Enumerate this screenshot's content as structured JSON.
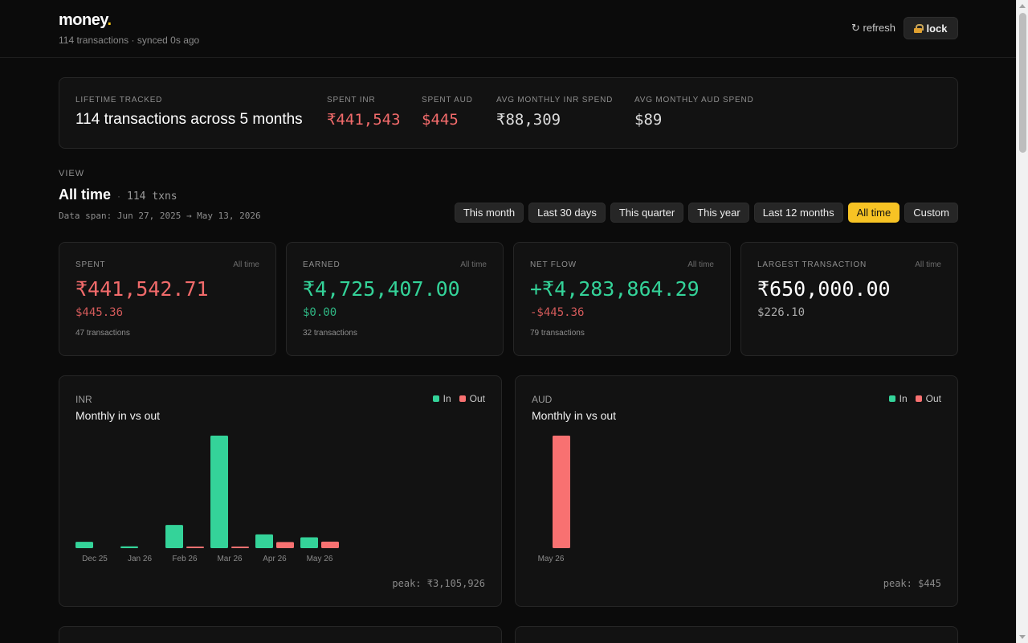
{
  "header": {
    "brand": "money",
    "brand_dot": ".",
    "subtitle": "114 transactions · synced 0s ago",
    "refresh_label": "↻ refresh",
    "lock_label": "lock"
  },
  "lifetime": {
    "items": [
      {
        "label": "LIFETIME TRACKED",
        "value": "114 transactions across 5 months"
      },
      {
        "label": "SPENT INR",
        "value": "₹441,543"
      },
      {
        "label": "SPENT AUD",
        "value": "$445"
      },
      {
        "label": "AVG MONTHLY INR SPEND",
        "value": "₹88,309"
      },
      {
        "label": "AVG MONTHLY AUD SPEND",
        "value": "$89"
      }
    ]
  },
  "view": {
    "label": "VIEW",
    "title": "All time",
    "separator": "·",
    "count": "114 txns",
    "data_span": "Data span: Jun 27, 2025 → May 13, 2026",
    "ranges": [
      "This month",
      "Last 30 days",
      "This quarter",
      "This year",
      "Last 12 months",
      "All time",
      "Custom"
    ],
    "active_range": "All time"
  },
  "stats": [
    {
      "label": "SPENT",
      "period": "All time",
      "main": "₹441,542.71",
      "sub": "$445.36",
      "count": "47 transactions"
    },
    {
      "label": "EARNED",
      "period": "All time",
      "main": "₹4,725,407.00",
      "sub": "$0.00",
      "count": "32 transactions"
    },
    {
      "label": "NET FLOW",
      "period": "All time",
      "main": "+₹4,283,864.29",
      "sub": "-$445.36",
      "count": "79 transactions"
    },
    {
      "label": "LARGEST TRANSACTION",
      "period": "All time",
      "main": "₹650,000.00",
      "sub": "$226.10",
      "count": ""
    }
  ],
  "colors": {
    "in": "#34d399",
    "out": "#f87171",
    "accent": "#f7c324"
  },
  "charts": [
    {
      "currency": "INR",
      "title": "Monthly in vs out",
      "legend_in": "In",
      "legend_out": "Out",
      "peak": "peak: ₹3,105,926"
    },
    {
      "currency": "AUD",
      "title": "Monthly in vs out",
      "legend_in": "In",
      "legend_out": "Out",
      "peak": "peak: $445"
    }
  ],
  "chart_data": [
    {
      "type": "bar",
      "title": "Monthly in vs out",
      "categories": [
        "Dec 25",
        "Jan 26",
        "Feb 26",
        "Mar 26",
        "Apr 26",
        "May 26"
      ],
      "series": [
        {
          "name": "In",
          "values": [
            175000,
            50000,
            640000,
            3105926,
            380000,
            300000
          ]
        },
        {
          "name": "Out",
          "values": [
            0,
            0,
            10000,
            40000,
            170000,
            180000
          ]
        }
      ],
      "ylim": [
        0,
        3105926
      ],
      "legend": "top-right",
      "grid": false
    },
    {
      "type": "bar",
      "title": "Monthly in vs out",
      "categories": [
        "May 26"
      ],
      "series": [
        {
          "name": "In",
          "values": [
            0
          ]
        },
        {
          "name": "Out",
          "values": [
            445
          ]
        }
      ],
      "ylim": [
        0,
        445
      ],
      "legend": "top-right",
      "grid": false
    }
  ]
}
